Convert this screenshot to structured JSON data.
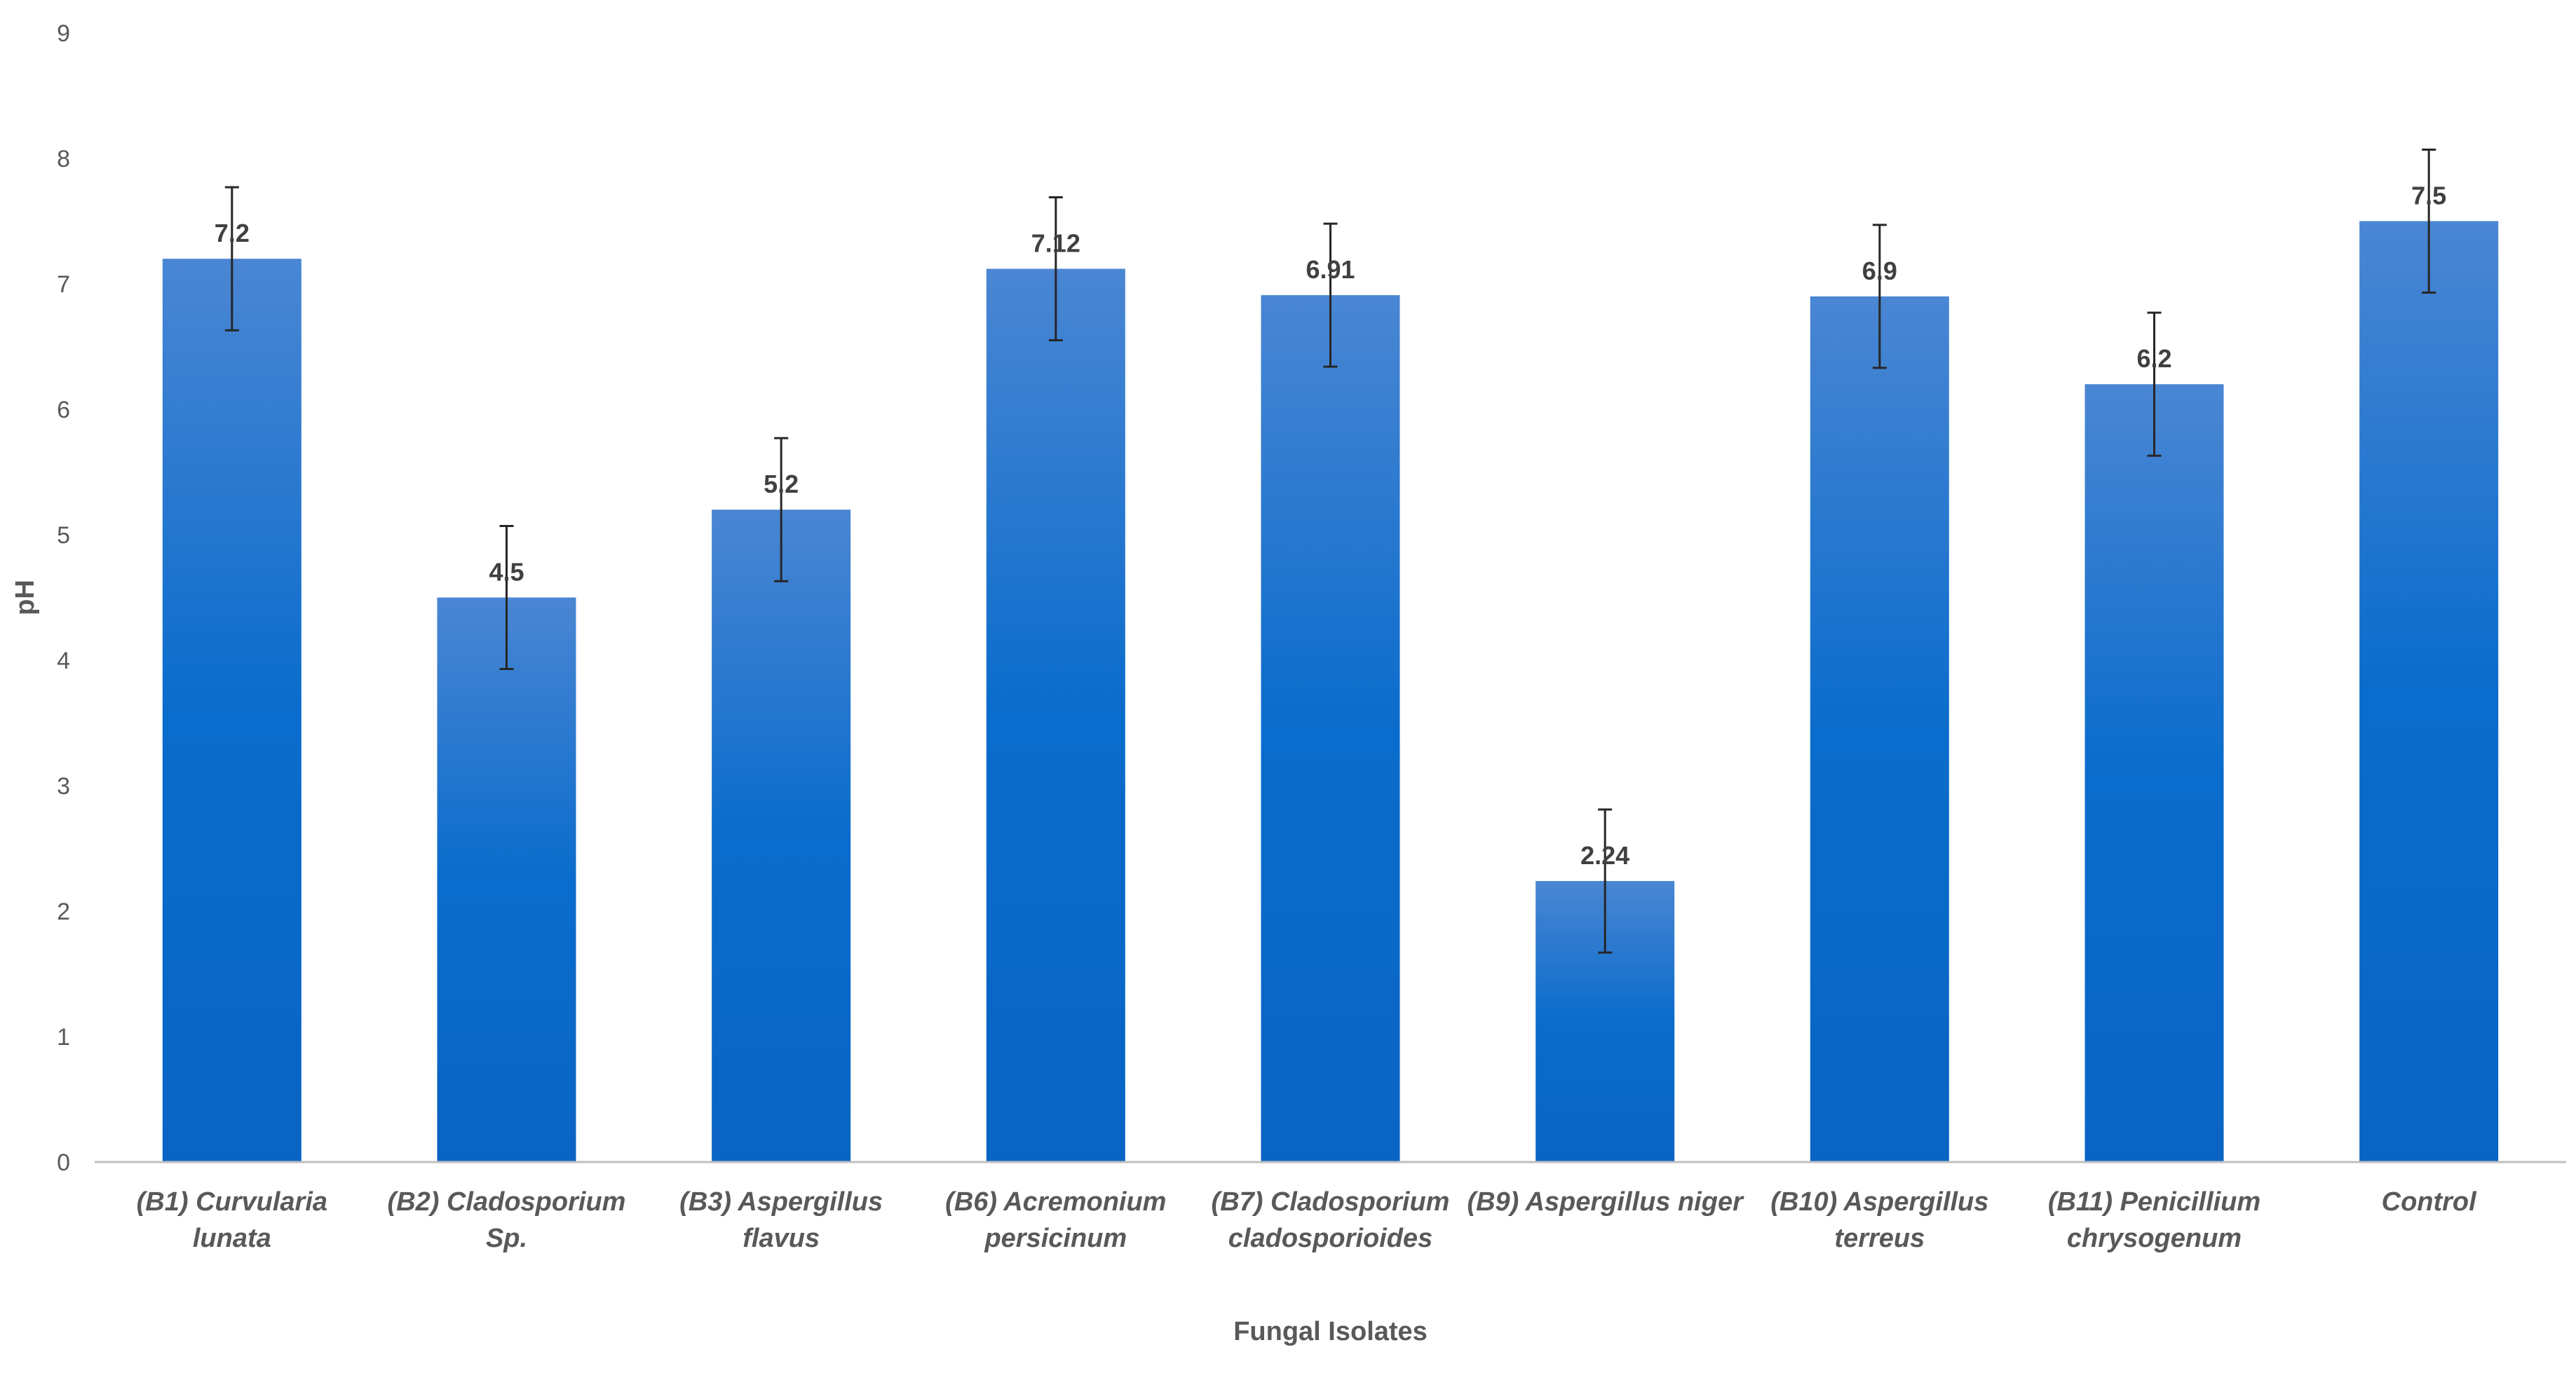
{
  "chart_data": {
    "type": "bar",
    "categories": [
      [
        "(B1) Curvularia",
        "lunata"
      ],
      [
        "(B2) Cladosporium",
        "Sp."
      ],
      [
        "(B3) Aspergillus",
        "flavus"
      ],
      [
        "(B6) Acremonium",
        "persicinum"
      ],
      [
        "(B7) Cladosporium",
        "cladosporioides"
      ],
      [
        "(B9) Aspergillus niger"
      ],
      [
        "(B10) Aspergillus",
        "terreus"
      ],
      [
        "(B11) Penicillium",
        "chrysogenum"
      ],
      [
        "Control"
      ]
    ],
    "values": [
      7.2,
      4.5,
      5.2,
      7.12,
      6.91,
      2.24,
      6.9,
      6.2,
      7.5
    ],
    "data_labels": [
      "7.2",
      "4.5",
      "5.2",
      "7.12",
      "6.91",
      "2.24",
      "6.9",
      "6.2",
      "7.5"
    ],
    "error": [
      0.57,
      0.57,
      0.57,
      0.57,
      0.57,
      0.57,
      0.57,
      0.57,
      0.57
    ],
    "xlabel": "Fungal Isolates",
    "ylabel": "pH",
    "ylim": [
      0,
      9
    ],
    "yticks": [
      "0",
      "1",
      "2",
      "3",
      "4",
      "5",
      "6",
      "7",
      "8",
      "9"
    ],
    "grid": false,
    "legend": "none",
    "colors": {
      "bar_top": "#4a86d3",
      "bar_bottom": "#0a64c4",
      "error_bar": "#262626",
      "axis": "#bfbfbf"
    }
  }
}
